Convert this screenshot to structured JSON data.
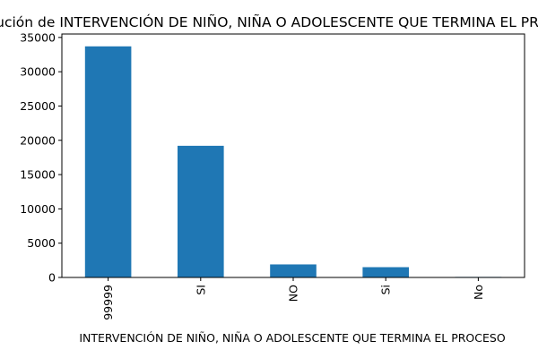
{
  "chart_data": {
    "type": "bar",
    "title": "Distribución de INTERVENCIÓN DE NIÑO, NIÑA O ADOLESCENTE QUE TERMINA EL PROCESO",
    "xlabel": "INTERVENCIÓN DE NIÑO, NIÑA O ADOLESCENTE QUE TERMINA EL PROCESO",
    "ylabel": "",
    "categories": [
      "99999",
      "SI",
      "NO",
      "Si",
      "No"
    ],
    "values": [
      33700,
      19200,
      1900,
      1500,
      80
    ],
    "ylim": [
      0,
      35500
    ],
    "yticks": [
      0,
      5000,
      10000,
      15000,
      20000,
      25000,
      30000,
      35000
    ],
    "bar_color": "#1f77b4",
    "grid": false,
    "legend": "none"
  }
}
